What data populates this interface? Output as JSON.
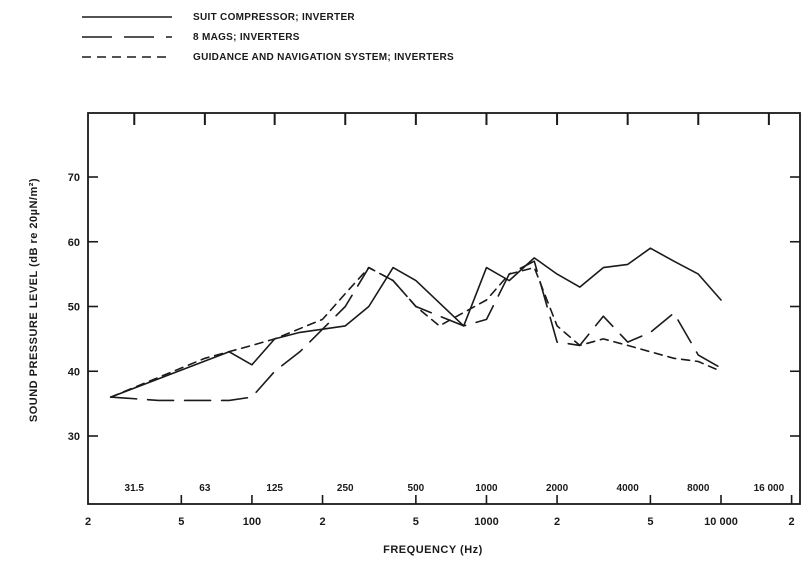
{
  "chart_data": {
    "type": "line",
    "title": "",
    "xlabel": "FREQUENCY (Hz)",
    "ylabel": "SOUND PRESSURE LEVEL (dB re 20µN/m²)",
    "x_scale": "log",
    "xlim": [
      20,
      20000
    ],
    "ylim": [
      20,
      80
    ],
    "grid": false,
    "legend_position": "top-left",
    "x_ticks": [
      {
        "value": 20,
        "label": "2"
      },
      {
        "value": 50,
        "label": "5"
      },
      {
        "value": 100,
        "label": "100"
      },
      {
        "value": 200,
        "label": "2"
      },
      {
        "value": 500,
        "label": "5"
      },
      {
        "value": 1000,
        "label": "1000"
      },
      {
        "value": 2000,
        "label": "2"
      },
      {
        "value": 5000,
        "label": "5"
      },
      {
        "value": 10000,
        "label": "10 000"
      },
      {
        "value": 20000,
        "label": "2"
      }
    ],
    "y_ticks": [
      {
        "value": 30,
        "label": "30"
      },
      {
        "value": 40,
        "label": "40"
      },
      {
        "value": 50,
        "label": "50"
      },
      {
        "value": 60,
        "label": "60"
      },
      {
        "value": 70,
        "label": "70"
      }
    ],
    "octave_bands": [
      {
        "value": 31.5,
        "label": "31.5"
      },
      {
        "value": 63,
        "label": "63"
      },
      {
        "value": 125,
        "label": "125"
      },
      {
        "value": 250,
        "label": "250"
      },
      {
        "value": 500,
        "label": "500"
      },
      {
        "value": 1000,
        "label": "1000"
      },
      {
        "value": 2000,
        "label": "2000"
      },
      {
        "value": 4000,
        "label": "4000"
      },
      {
        "value": 8000,
        "label": "8000"
      },
      {
        "value": 16000,
        "label": "16 000"
      }
    ],
    "series": [
      {
        "name": "SUIT COMPRESSOR; INVERTER",
        "style": "solid",
        "color": "#1a1a1a",
        "points": [
          {
            "x": 25,
            "y": 36
          },
          {
            "x": 80,
            "y": 43
          },
          {
            "x": 100,
            "y": 41
          },
          {
            "x": 125,
            "y": 45
          },
          {
            "x": 160,
            "y": 46
          },
          {
            "x": 250,
            "y": 47
          },
          {
            "x": 315,
            "y": 50
          },
          {
            "x": 400,
            "y": 56
          },
          {
            "x": 500,
            "y": 54
          },
          {
            "x": 800,
            "y": 47
          },
          {
            "x": 1000,
            "y": 56
          },
          {
            "x": 1250,
            "y": 54
          },
          {
            "x": 1600,
            "y": 57.5
          },
          {
            "x": 2000,
            "y": 55
          },
          {
            "x": 2500,
            "y": 53
          },
          {
            "x": 3150,
            "y": 56
          },
          {
            "x": 4000,
            "y": 56.5
          },
          {
            "x": 5000,
            "y": 59
          },
          {
            "x": 6300,
            "y": 57
          },
          {
            "x": 8000,
            "y": 55
          },
          {
            "x": 10000,
            "y": 51
          }
        ]
      },
      {
        "name": "8 MAGS; INVERTERS",
        "style": "long-dash",
        "color": "#1a1a1a",
        "points": [
          {
            "x": 25,
            "y": 36
          },
          {
            "x": 40,
            "y": 35.5
          },
          {
            "x": 80,
            "y": 35.5
          },
          {
            "x": 100,
            "y": 36
          },
          {
            "x": 125,
            "y": 40
          },
          {
            "x": 160,
            "y": 43
          },
          {
            "x": 250,
            "y": 50
          },
          {
            "x": 315,
            "y": 56
          },
          {
            "x": 400,
            "y": 54
          },
          {
            "x": 500,
            "y": 50
          },
          {
            "x": 800,
            "y": 47
          },
          {
            "x": 1000,
            "y": 48
          },
          {
            "x": 1250,
            "y": 55
          },
          {
            "x": 1600,
            "y": 57
          },
          {
            "x": 2000,
            "y": 44.5
          },
          {
            "x": 2500,
            "y": 44
          },
          {
            "x": 3150,
            "y": 48.5
          },
          {
            "x": 4000,
            "y": 44.5
          },
          {
            "x": 5000,
            "y": 46
          },
          {
            "x": 6300,
            "y": 49
          },
          {
            "x": 8000,
            "y": 42.5
          },
          {
            "x": 10000,
            "y": 40.5
          }
        ]
      },
      {
        "name": "GUIDANCE AND NAVIGATION SYSTEM; INVERTERS",
        "style": "short-dash",
        "color": "#1a1a1a",
        "points": [
          {
            "x": 25,
            "y": 36
          },
          {
            "x": 63,
            "y": 42
          },
          {
            "x": 100,
            "y": 44
          },
          {
            "x": 125,
            "y": 45
          },
          {
            "x": 200,
            "y": 48
          },
          {
            "x": 250,
            "y": 52
          },
          {
            "x": 315,
            "y": 56
          },
          {
            "x": 400,
            "y": 54
          },
          {
            "x": 500,
            "y": 50
          },
          {
            "x": 630,
            "y": 47
          },
          {
            "x": 1000,
            "y": 51
          },
          {
            "x": 1250,
            "y": 55
          },
          {
            "x": 1600,
            "y": 56
          },
          {
            "x": 2000,
            "y": 47
          },
          {
            "x": 2500,
            "y": 44
          },
          {
            "x": 3150,
            "y": 45
          },
          {
            "x": 4000,
            "y": 44
          },
          {
            "x": 5000,
            "y": 43
          },
          {
            "x": 6300,
            "y": 42
          },
          {
            "x": 8000,
            "y": 41.5
          },
          {
            "x": 10000,
            "y": 40
          }
        ]
      }
    ]
  }
}
